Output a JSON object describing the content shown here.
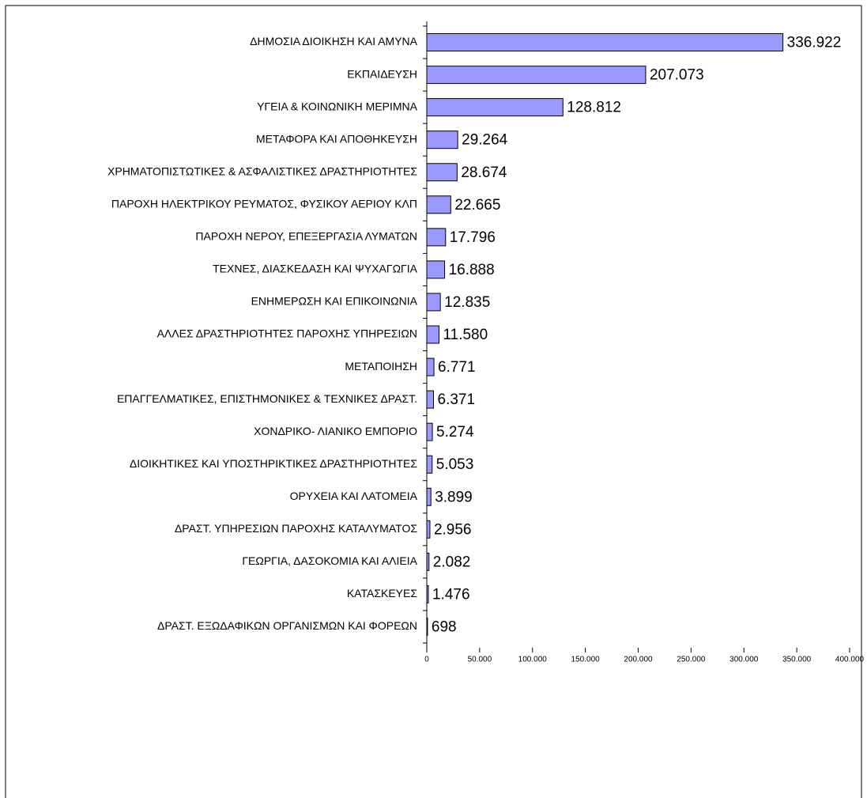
{
  "chart_data": {
    "type": "bar",
    "orientation": "horizontal",
    "categories": [
      "ΔΗΜΟΣΙΑ ΔΙΟΙΚΗΣΗ ΚΑΙ ΑΜΥΝΑ",
      "ΕΚΠΑΙΔΕΥΣΗ",
      "ΥΓΕΙΑ & ΚΟΙΝΩΝΙΚΗ ΜΕΡΙΜΝΑ",
      "ΜΕΤΑΦΟΡΑ ΚΑΙ ΑΠΟΘΗΚΕΥΣΗ",
      "ΧΡΗΜΑΤΟΠΙΣΤΩΤΙΚΕΣ & ΑΣΦΑΛΙΣΤΙΚΕΣ ΔΡΑΣΤΗΡΙΟΤΗΤΕΣ",
      "ΠΑΡΟΧΗ ΗΛΕΚΤΡΙΚΟΥ ΡΕΥΜΑΤΟΣ, ΦΥΣΙΚΟΥ ΑΕΡΙΟΥ ΚΛΠ",
      "ΠΑΡΟΧΗ ΝΕΡΟΥ, ΕΠΕΞΕΡΓΑΣΙΑ ΛΥΜΑΤΩΝ",
      "ΤΕΧΝΕΣ, ΔΙΑΣΚΕΔΑΣΗ ΚΑΙ ΨΥΧΑΓΩΓΙΑ",
      "ΕΝΗΜΕΡΩΣΗ ΚΑΙ ΕΠΙΚΟΙΝΩΝΙΑ",
      "ΑΛΛΕΣ ΔΡΑΣΤΗΡΙΟΤΗΤΕΣ ΠΑΡΟΧΗΣ ΥΠΗΡΕΣΙΩΝ",
      "ΜΕΤΑΠΟΙΗΣΗ",
      "ΕΠΑΓΓΕΛΜΑΤΙΚΕΣ, ΕΠΙΣΤΗΜΟΝΙΚΕΣ & ΤΕΧΝΙΚΕΣ ΔΡΑΣΤ.",
      "ΧΟΝΔΡΙΚΟ- ΛΙΑΝΙΚΟ ΕΜΠΟΡΙΟ",
      "ΔΙΟΙΚΗΤΙΚΕΣ ΚΑΙ ΥΠΟΣΤΗΡΙΚΤΙΚΕΣ ΔΡΑΣΤΗΡΙΟΤΗΤΕΣ",
      "ΟΡΥΧΕΙΑ ΚΑΙ ΛΑΤΟΜΕΙΑ",
      "ΔΡΑΣΤ. ΥΠΗΡΕΣΙΩΝ ΠΑΡΟΧΗΣ ΚΑΤΑΛΥΜΑΤΟΣ",
      "ΓΕΩΡΓΙΑ, ΔΑΣΟΚΟΜΙΑ ΚΑΙ ΑΛΙΕΙΑ",
      "ΚΑΤΑΣΚΕΥΕΣ",
      "ΔΡΑΣΤ. ΕΞΩΔΑΦΙΚΩΝ ΟΡΓΑΝΙΣΜΩΝ ΚΑΙ ΦΟΡΕΩΝ"
    ],
    "values": [
      336922,
      207073,
      128812,
      29264,
      28674,
      22665,
      17796,
      16888,
      12835,
      11580,
      6771,
      6371,
      5274,
      5053,
      3899,
      2956,
      2082,
      1476,
      698
    ],
    "value_labels": [
      "336.922",
      "207.073",
      "128.812",
      "29.264",
      "28.674",
      "22.665",
      "17.796",
      "16.888",
      "12.835",
      "11.580",
      "6.771",
      "6.371",
      "5.274",
      "5.053",
      "3.899",
      "2.956",
      "2.082",
      "1.476",
      "698"
    ],
    "color": "#9999ff",
    "xlim": [
      0,
      400000
    ],
    "xticks": [
      0,
      {
        "value": 50000,
        "label": "50.000"
      },
      {
        "value": 100000,
        "label": "100.000"
      },
      {
        "value": 150000,
        "label": "150.000"
      },
      {
        "value": 200000,
        "label": "200.000"
      },
      {
        "value": 250000,
        "label": "250.000"
      },
      {
        "value": 300000,
        "label": "300.000"
      },
      {
        "value": 350000,
        "label": "350.000"
      },
      {
        "value": 400000,
        "label": "400.000"
      }
    ]
  }
}
